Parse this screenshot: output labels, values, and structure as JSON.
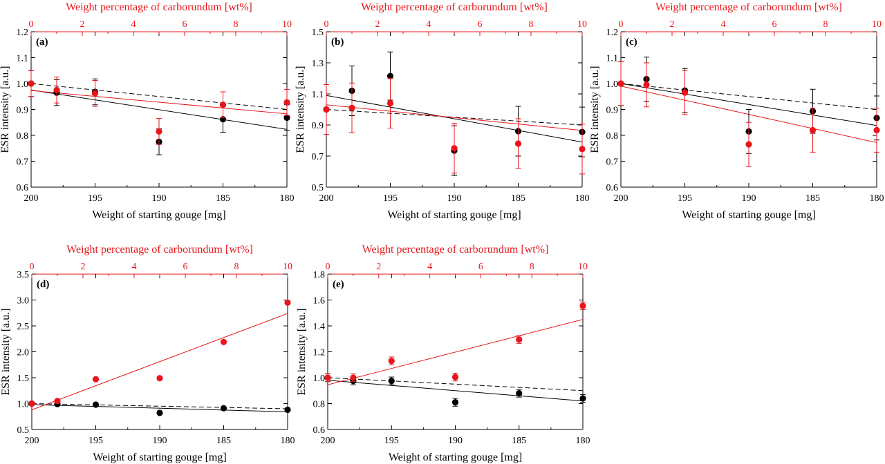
{
  "colors": {
    "red": "#e8161b",
    "black": "#000000"
  },
  "chart_data": [
    {
      "type": "scatter",
      "panel_label": "(a)",
      "xlabel": "Weight of starting gouge [mg]",
      "ylabel": "ESR intensity [a.u.]",
      "top_xlabel": "Weight percentage of carborundum [wt%]",
      "xlim": [
        200,
        180
      ],
      "top_xlim": [
        0,
        10
      ],
      "ylim": [
        0.6,
        1.2
      ],
      "x_ticks": [
        "200",
        "195",
        "190",
        "185",
        "180"
      ],
      "top_x_ticks": [
        "0",
        "2",
        "4",
        "6",
        "8",
        "10"
      ],
      "y_ticks": [
        "0.6",
        "0.7",
        "0.8",
        "0.9",
        "1.0",
        "1.1",
        "1.2"
      ],
      "series": [
        {
          "color": "#000000",
          "x": [
            200,
            198,
            195,
            190,
            185,
            180
          ],
          "y": [
            1.0,
            0.965,
            0.968,
            0.775,
            0.862,
            0.868
          ],
          "err": [
            0.05,
            0.05,
            0.05,
            0.05,
            0.05,
            0.05
          ],
          "fit": [
            0.975,
            0.823
          ]
        },
        {
          "color": "#e8161b",
          "x": [
            200,
            198,
            195,
            190,
            185,
            180
          ],
          "y": [
            1.0,
            0.975,
            0.962,
            0.815,
            0.918,
            0.927
          ],
          "err": [
            0.05,
            0.05,
            0.05,
            0.05,
            0.05,
            0.05
          ],
          "fit": [
            0.973,
            0.883
          ]
        },
        {
          "color": "#000000",
          "dashed": true,
          "fit": [
            1.0,
            0.9
          ]
        }
      ]
    },
    {
      "type": "scatter",
      "panel_label": "(b)",
      "xlabel": "Weight of starting gouge [mg]",
      "ylabel": "ESR intensity [a.u.]",
      "top_xlabel": "Weight percentage of carborundum [wt%]",
      "xlim": [
        200,
        180
      ],
      "top_xlim": [
        0,
        10
      ],
      "ylim": [
        0.5,
        1.5
      ],
      "x_ticks": [
        "200",
        "195",
        "190",
        "185",
        "180"
      ],
      "top_x_ticks": [
        "0",
        "2",
        "4",
        "6",
        "8",
        "10"
      ],
      "y_ticks": [
        "0.5",
        "0.7",
        "0.9",
        "1.1",
        "1.3",
        "1.5"
      ],
      "series": [
        {
          "color": "#000000",
          "x": [
            200,
            198,
            195,
            190,
            185,
            180
          ],
          "y": [
            1.0,
            1.12,
            1.215,
            0.735,
            0.86,
            0.855
          ],
          "err": [
            0.16,
            0.16,
            0.155,
            0.16,
            0.16,
            0.16
          ],
          "fit": [
            1.09,
            0.79
          ]
        },
        {
          "color": "#e8161b",
          "x": [
            200,
            198,
            195,
            190,
            185,
            180
          ],
          "y": [
            1.0,
            1.01,
            1.04,
            0.75,
            0.78,
            0.745
          ],
          "err": [
            0.16,
            0.16,
            0.16,
            0.16,
            0.16,
            0.16
          ],
          "fit": [
            1.03,
            0.865
          ]
        },
        {
          "color": "#000000",
          "dashed": true,
          "fit": [
            1.0,
            0.9
          ]
        }
      ]
    },
    {
      "type": "scatter",
      "panel_label": "(c)",
      "xlabel": "Weight of starting gouge [mg]",
      "ylabel": "ESR intensity [a.u.]",
      "top_xlabel": "Weight percentage of carborundum [wt%]",
      "xlim": [
        200,
        180
      ],
      "top_xlim": [
        0,
        10
      ],
      "ylim": [
        0.6,
        1.2
      ],
      "x_ticks": [
        "200",
        "195",
        "190",
        "185",
        "180"
      ],
      "top_x_ticks": [
        "0",
        "2",
        "4",
        "6",
        "8",
        "10"
      ],
      "y_ticks": [
        "0.6",
        "0.7",
        "0.8",
        "0.9",
        "1.0",
        "1.1",
        "1.2"
      ],
      "series": [
        {
          "color": "#000000",
          "x": [
            200,
            198,
            195,
            190,
            185,
            180
          ],
          "y": [
            1.0,
            1.017,
            0.973,
            0.815,
            0.893,
            0.867
          ],
          "err": [
            0.085,
            0.085,
            0.085,
            0.085,
            0.085,
            0.085
          ],
          "fit": [
            1.0,
            0.838
          ]
        },
        {
          "color": "#e8161b",
          "x": [
            200,
            198,
            195,
            190,
            185,
            180
          ],
          "y": [
            1.0,
            0.995,
            0.965,
            0.765,
            0.82,
            0.82
          ],
          "err": [
            0.085,
            0.085,
            0.085,
            0.085,
            0.085,
            0.085
          ],
          "fit": [
            0.99,
            0.772
          ]
        },
        {
          "color": "#000000",
          "dashed": true,
          "fit": [
            1.0,
            0.9
          ]
        }
      ]
    },
    {
      "type": "scatter",
      "panel_label": "(d)",
      "xlabel": "Weight of starting gouge [mg]",
      "ylabel": "ESR intensity [a.u.]",
      "top_xlabel": "Weight percentage of carborundum [wt%]",
      "xlim": [
        200,
        180
      ],
      "top_xlim": [
        0,
        10
      ],
      "ylim": [
        0.5,
        3.5
      ],
      "x_ticks": [
        "200",
        "195",
        "190",
        "185",
        "180"
      ],
      "top_x_ticks": [
        "0",
        "2",
        "4",
        "6",
        "8",
        "10"
      ],
      "y_ticks": [
        "0.5",
        "1.0",
        "1.5",
        "2.0",
        "2.5",
        "3.0",
        "3.5"
      ],
      "series": [
        {
          "color": "#000000",
          "x": [
            200,
            198,
            195,
            190,
            185,
            180
          ],
          "y": [
            1.0,
            0.99,
            0.98,
            0.82,
            0.91,
            0.88
          ],
          "err": [
            0.02,
            0.02,
            0.02,
            0.02,
            0.02,
            0.02
          ],
          "fit": [
            0.98,
            0.84
          ]
        },
        {
          "color": "#e8161b",
          "x": [
            200,
            198,
            195,
            190,
            185,
            180
          ],
          "y": [
            1.0,
            1.05,
            1.47,
            1.49,
            2.19,
            2.95
          ],
          "err": [
            0.02,
            0.02,
            0.02,
            0.02,
            0.02,
            0.02
          ],
          "fit": [
            0.88,
            2.74
          ]
        },
        {
          "color": "#000000",
          "dashed": true,
          "fit": [
            1.0,
            0.9
          ]
        }
      ]
    },
    {
      "type": "scatter",
      "panel_label": "(e)",
      "xlabel": "Weight of starting gouge [mg]",
      "ylabel": "ESR intensity [a.u.]",
      "top_xlabel": "Weight percentage of carborundum [wt%]",
      "xlim": [
        200,
        180
      ],
      "top_xlim": [
        0,
        10
      ],
      "ylim": [
        0.6,
        1.8
      ],
      "x_ticks": [
        "200",
        "195",
        "190",
        "185",
        "180"
      ],
      "top_x_ticks": [
        "0",
        "2",
        "4",
        "6",
        "8",
        "10"
      ],
      "y_ticks": [
        "0.6",
        "0.8",
        "1.0",
        "1.2",
        "1.4",
        "1.6",
        "1.8"
      ],
      "series": [
        {
          "color": "#000000",
          "x": [
            200,
            198,
            195,
            190,
            185,
            180
          ],
          "y": [
            1.0,
            0.975,
            0.975,
            0.81,
            0.88,
            0.84
          ],
          "err": [
            0.03,
            0.03,
            0.03,
            0.03,
            0.03,
            0.03
          ],
          "fit": [
            0.98,
            0.82
          ]
        },
        {
          "color": "#e8161b",
          "x": [
            200,
            198,
            195,
            190,
            185,
            180
          ],
          "y": [
            1.0,
            1.0,
            1.13,
            1.005,
            1.295,
            1.555
          ],
          "err": [
            0.03,
            0.03,
            0.03,
            0.03,
            0.03,
            0.03
          ],
          "fit": [
            0.945,
            1.45
          ]
        },
        {
          "color": "#000000",
          "dashed": true,
          "fit": [
            1.0,
            0.9
          ]
        }
      ]
    }
  ]
}
